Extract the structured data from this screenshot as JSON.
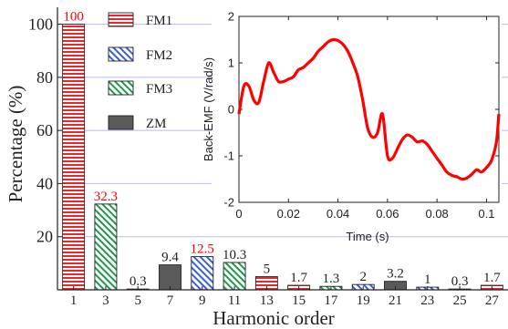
{
  "colors": {
    "highlight": "#ff0000",
    "text": "#222222",
    "grid": "#b8bce8",
    "inset_line": "#ff0000"
  },
  "chart_data": [
    {
      "type": "bar",
      "xlabel": "Harmonic order",
      "ylabel": "Percentage (%)",
      "ylim": [
        0,
        105
      ],
      "yticks": [
        20,
        40,
        60,
        80,
        100
      ],
      "categories": [
        "1",
        "3",
        "5",
        "7",
        "9",
        "11",
        "13",
        "15",
        "17",
        "19",
        "21",
        "23",
        "25",
        "27"
      ],
      "grid": true,
      "legend_position": "top-left",
      "series": [
        {
          "name": "FM1",
          "pattern": "horizontal-stripes",
          "color": "#e8262b"
        },
        {
          "name": "FM2",
          "pattern": "diagonal-hatch",
          "color": "#3b5fd9"
        },
        {
          "name": "FM3",
          "pattern": "diagonal-hatch",
          "color": "#1f9a4a"
        },
        {
          "name": "ZM",
          "pattern": "solid",
          "color": "#5a5a5a"
        }
      ],
      "bars": [
        {
          "category": "1",
          "series": "FM1",
          "value": 100,
          "label": "100",
          "label_highlight": true
        },
        {
          "category": "3",
          "series": "FM3",
          "value": 32.3,
          "label": "32.3",
          "label_highlight": true
        },
        {
          "category": "5",
          "series": "FM2",
          "value": 0.3,
          "label": "0.3",
          "label_highlight": false
        },
        {
          "category": "7",
          "series": "ZM",
          "value": 9.4,
          "label": "9.4",
          "label_highlight": false
        },
        {
          "category": "9",
          "series": "FM2",
          "value": 12.5,
          "label": "12.5",
          "label_highlight": true
        },
        {
          "category": "11",
          "series": "FM3",
          "value": 10.3,
          "label": "10.3",
          "label_highlight": false
        },
        {
          "category": "13",
          "series": "FM1",
          "value": 5,
          "label": "5",
          "label_highlight": false
        },
        {
          "category": "15",
          "series": "FM1",
          "value": 1.7,
          "label": "1.7",
          "label_highlight": false
        },
        {
          "category": "17",
          "series": "FM3",
          "value": 1.3,
          "label": "1.3",
          "label_highlight": false
        },
        {
          "category": "19",
          "series": "FM2",
          "value": 2,
          "label": "2",
          "label_highlight": false
        },
        {
          "category": "21",
          "series": "ZM",
          "value": 3.2,
          "label": "3.2",
          "label_highlight": false
        },
        {
          "category": "23",
          "series": "FM2",
          "value": 1,
          "label": "1",
          "label_highlight": false
        },
        {
          "category": "25",
          "series": "FM2",
          "value": 0.3,
          "label": "0.3",
          "label_highlight": false
        },
        {
          "category": "27",
          "series": "FM1",
          "value": 1.7,
          "label": "1.7",
          "label_highlight": false
        }
      ]
    },
    {
      "type": "line",
      "xlabel": "Time (s)",
      "ylabel": "Back-EMF (V/rad/s)",
      "xlim": [
        0,
        0.105
      ],
      "ylim": [
        -2,
        2
      ],
      "xticks": [
        "0",
        "0.02",
        "0.04",
        "0.06",
        "0.08",
        "0.1"
      ],
      "xtick_values": [
        0,
        0.02,
        0.04,
        0.06,
        0.08,
        0.1
      ],
      "yticks": [
        "-2",
        "-1",
        "0",
        "1",
        "2"
      ],
      "ytick_values": [
        -2,
        -1,
        0,
        1,
        2
      ],
      "grid": false,
      "x": [
        0,
        0.002,
        0.004,
        0.006,
        0.008,
        0.01,
        0.012,
        0.014,
        0.016,
        0.018,
        0.02,
        0.022,
        0.024,
        0.026,
        0.028,
        0.03,
        0.032,
        0.034,
        0.036,
        0.038,
        0.04,
        0.042,
        0.044,
        0.046,
        0.048,
        0.05,
        0.052,
        0.054,
        0.056,
        0.058,
        0.06,
        0.062,
        0.064,
        0.066,
        0.068,
        0.07,
        0.072,
        0.074,
        0.076,
        0.078,
        0.08,
        0.082,
        0.084,
        0.086,
        0.088,
        0.09,
        0.092,
        0.094,
        0.096,
        0.098,
        0.1,
        0.102,
        0.104,
        0.105
      ],
      "y": [
        -0.1,
        0.5,
        0.5,
        0.2,
        0.15,
        0.6,
        1.0,
        0.8,
        0.6,
        0.6,
        0.65,
        0.7,
        0.85,
        0.9,
        1.0,
        1.1,
        1.25,
        1.35,
        1.45,
        1.5,
        1.48,
        1.4,
        1.25,
        1.0,
        0.7,
        0.2,
        -0.4,
        -0.6,
        -0.5,
        -0.1,
        -1.0,
        -1.05,
        -0.85,
        -0.65,
        -0.55,
        -0.6,
        -0.7,
        -0.68,
        -0.75,
        -0.9,
        -1.05,
        -1.2,
        -1.35,
        -1.42,
        -1.45,
        -1.5,
        -1.48,
        -1.4,
        -1.3,
        -1.35,
        -1.25,
        -1.1,
        -0.7,
        -0.1
      ]
    }
  ]
}
